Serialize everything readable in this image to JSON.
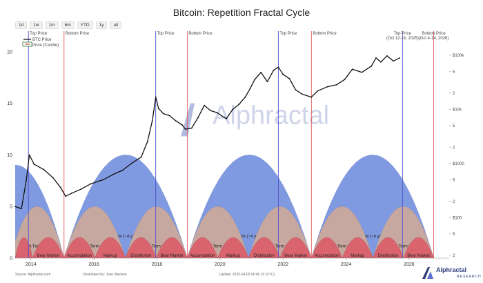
{
  "chart_data": {
    "type": "line",
    "title": "Bitcoin: Repetition Fractal Cycle",
    "range_buttons": [
      "1d",
      "1w",
      "1m",
      "6m",
      "YTD",
      "1y",
      "all"
    ],
    "legend": [
      "BTC Price",
      "Price (Candle)"
    ],
    "x_ticks": [
      "2014",
      "2016",
      "2018",
      "2020",
      "2022",
      "2024",
      "2026"
    ],
    "x_tick_years": [
      2014,
      2016,
      2018,
      2020,
      2022,
      2024,
      2026
    ],
    "x_range": [
      2013.5,
      2027.25
    ],
    "y_left_ticks": [
      0,
      5,
      10,
      15,
      20
    ],
    "y_left_range": [
      0,
      22
    ],
    "y_right_ticks": [
      "$100k",
      "5",
      "2",
      "$10k",
      "5",
      "2",
      "$1000",
      "5",
      "2",
      "$100",
      "5",
      "2"
    ],
    "y_right_values": [
      100000,
      50000,
      20000,
      10000,
      5000,
      2000,
      1000,
      500,
      200,
      100,
      50,
      20
    ],
    "price_series": {
      "name": "BTC Price",
      "x": [
        2013.5,
        2013.7,
        2013.85,
        2013.95,
        2014.1,
        2014.4,
        2014.7,
        2014.95,
        2015.1,
        2015.3,
        2015.6,
        2015.9,
        2016.3,
        2016.6,
        2016.9,
        2017.2,
        2017.5,
        2017.7,
        2017.85,
        2017.96,
        2018.05,
        2018.2,
        2018.4,
        2018.6,
        2018.8,
        2018.9,
        2019.1,
        2019.3,
        2019.5,
        2019.7,
        2019.9,
        2020.2,
        2020.4,
        2020.6,
        2020.8,
        2020.95,
        2021.1,
        2021.3,
        2021.5,
        2021.7,
        2021.85,
        2022.0,
        2022.2,
        2022.4,
        2022.6,
        2022.9,
        2023.1,
        2023.4,
        2023.7,
        2023.95,
        2024.2,
        2024.5,
        2024.8,
        2024.95,
        2025.1,
        2025.3,
        2025.5,
        2025.7
      ],
      "y": [
        5.0,
        4.8,
        7.5,
        10.0,
        9.1,
        8.6,
        7.8,
        6.8,
        6.0,
        6.3,
        6.7,
        7.2,
        7.6,
        8.1,
        8.5,
        9.2,
        9.8,
        11.3,
        13.3,
        15.6,
        14.5,
        14.0,
        13.8,
        13.3,
        12.9,
        12.5,
        12.6,
        13.6,
        14.8,
        14.3,
        14.1,
        13.5,
        14.4,
        14.9,
        15.6,
        16.4,
        17.3,
        18.0,
        17.1,
        18.2,
        18.5,
        17.8,
        17.4,
        16.3,
        15.9,
        15.6,
        16.2,
        16.6,
        16.8,
        17.3,
        18.3,
        18.0,
        18.6,
        19.4,
        19.0,
        19.6,
        19.1,
        19.4
      ]
    },
    "vertical_markers": [
      {
        "label": "Top Price",
        "x": 2013.92,
        "color": "#4d4dcc"
      },
      {
        "label": "Bottom Price",
        "x": 2015.05,
        "color": "#e05a5a"
      },
      {
        "label": "Top Price",
        "x": 2017.96,
        "color": "#4d4dcc"
      },
      {
        "label": "Bottom Price",
        "x": 2018.96,
        "color": "#e05a5a"
      },
      {
        "label": "Top Price",
        "x": 2021.85,
        "color": "#4d4dcc"
      },
      {
        "label": "Bottom Price",
        "x": 2022.9,
        "color": "#e05a5a"
      },
      {
        "label": "Top Price",
        "sublabel": "(Oct 12-16, 2025)",
        "x": 2025.79,
        "color": "#4d4dcc"
      },
      {
        "label": "Bottom Price",
        "sublabel": "(Oct 4-14, 2026)",
        "x": 2026.78,
        "color": "#e05a5a"
      }
    ],
    "long_cycles": [
      {
        "label": "Cycle (~4 year)",
        "start": 2015.05,
        "end": 2018.96,
        "height": 10.0
      },
      {
        "label": "Cycle (~4 year)",
        "start": 2018.96,
        "end": 2022.9,
        "height": 10.0
      },
      {
        "label": "Cycle (~4 year)",
        "start": 2022.9,
        "end": 2026.78,
        "height": 10.0
      }
    ],
    "left_arc": {
      "start": 2012.0,
      "end": 2015.05,
      "height": 9.0
    },
    "short_cycles": [
      {
        "label": "Short Term Cycle",
        "start": 2013.35,
        "end": 2015.05
      },
      {
        "label": "Short Term Cycle",
        "start": 2015.05,
        "end": 2017.0
      },
      {
        "label": "Short Term Cycle",
        "start": 2017.0,
        "end": 2018.96
      },
      {
        "label": "Short Term Cycle",
        "start": 2018.96,
        "end": 2020.9
      },
      {
        "label": "Short Term Cycle",
        "start": 2020.9,
        "end": 2022.9
      },
      {
        "label": "Short Term Cycle",
        "start": 2022.9,
        "end": 2024.85
      },
      {
        "label": "Short Term Cycle",
        "start": 2024.85,
        "end": 2026.78
      }
    ],
    "short_height": 5.0,
    "phases": [
      {
        "label": "",
        "start": 2013.5,
        "end": 2014.05
      },
      {
        "label": "Bear Market",
        "start": 2014.05,
        "end": 2015.05
      },
      {
        "label": "Accumulation",
        "start": 2015.05,
        "end": 2016.03
      },
      {
        "label": "Markup",
        "start": 2016.03,
        "end": 2017.0
      },
      {
        "label": "Distribution",
        "start": 2017.0,
        "end": 2017.98
      },
      {
        "label": "Bear Market",
        "start": 2017.98,
        "end": 2018.96
      },
      {
        "label": "Accumulation",
        "start": 2018.96,
        "end": 2019.93
      },
      {
        "label": "Markup",
        "start": 2019.93,
        "end": 2020.9
      },
      {
        "label": "Distribution",
        "start": 2020.9,
        "end": 2021.9
      },
      {
        "label": "Bear Market",
        "start": 2021.9,
        "end": 2022.9
      },
      {
        "label": "Accumulation",
        "start": 2022.9,
        "end": 2023.88
      },
      {
        "label": "Markup",
        "start": 2023.88,
        "end": 2024.85
      },
      {
        "label": "Distribution",
        "start": 2024.85,
        "end": 2025.82
      },
      {
        "label": "Bear Market",
        "start": 2025.82,
        "end": 2026.78
      }
    ],
    "phase_height": 2.0,
    "watermark": "Alphractal",
    "colors": {
      "long_cycle": "#7f9ae0",
      "short_cycle": "#c7a8a0",
      "phase": "#d9646e",
      "price": "#111111",
      "top": "#4d4dcc",
      "bottom": "#e05a5a"
    }
  },
  "footer": {
    "source": "Source: Alphractal.com",
    "developed": "Developed by: Joao Wedson",
    "update": "Update: 2025-04-05 00:00 10 (UTC)"
  },
  "brand": {
    "name": "Alphractal",
    "sub": "RESEARCH"
  }
}
